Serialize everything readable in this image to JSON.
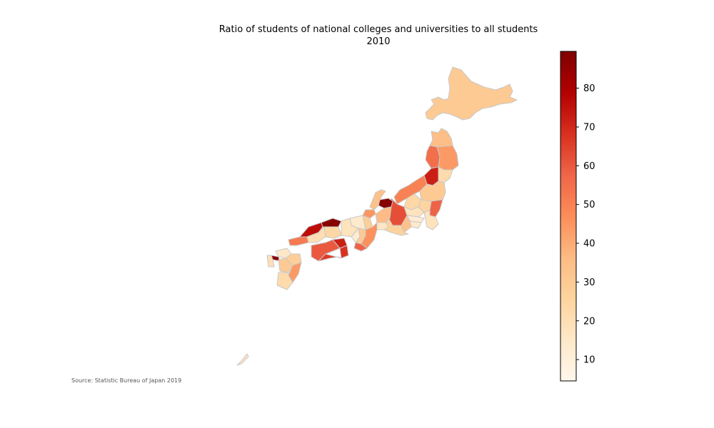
{
  "figure": {
    "title_line1": "Ratio of students of national colleges and universities to all students",
    "title_line2": "2010",
    "source": "Source: Statistic Bureau of Japan 2019"
  },
  "colorbar": {
    "colormap": "OrRd",
    "range": [
      4.5,
      89.5
    ],
    "ticks": [
      10,
      20,
      30,
      40,
      50,
      60,
      70,
      80
    ],
    "colors": [
      "#fff7ec",
      "#fee8c8",
      "#fdd49e",
      "#fdbb84",
      "#fc8d59",
      "#ef6548",
      "#d7301f",
      "#b30000",
      "#7f0000"
    ]
  },
  "regions": [
    {
      "name": "Hokkaido",
      "value": 30
    },
    {
      "name": "Aomori",
      "value": 35
    },
    {
      "name": "Iwate",
      "value": 44
    },
    {
      "name": "Akita",
      "value": 55
    },
    {
      "name": "Miyagi",
      "value": 22
    },
    {
      "name": "Yamagata",
      "value": 72
    },
    {
      "name": "Fukushima",
      "value": 30
    },
    {
      "name": "Niigata",
      "value": 50
    },
    {
      "name": "Ibaraki",
      "value": 58
    },
    {
      "name": "Tochigi",
      "value": 25
    },
    {
      "name": "Gunma",
      "value": 24
    },
    {
      "name": "Saitama",
      "value": 18
    },
    {
      "name": "Chiba",
      "value": 18
    },
    {
      "name": "Tokyo",
      "value": 12
    },
    {
      "name": "Kanagawa",
      "value": 14
    },
    {
      "name": "Yamanashi",
      "value": 34
    },
    {
      "name": "Nagano",
      "value": 62
    },
    {
      "name": "Toyama",
      "value": 88
    },
    {
      "name": "Ishikawa",
      "value": 34
    },
    {
      "name": "Fukui",
      "value": 45
    },
    {
      "name": "Gifu",
      "value": 36
    },
    {
      "name": "Shizuoka",
      "value": 26
    },
    {
      "name": "Aichi",
      "value": 16
    },
    {
      "name": "Mie",
      "value": 46
    },
    {
      "name": "Shiga",
      "value": 28
    },
    {
      "name": "Kyoto",
      "value": 14
    },
    {
      "name": "Osaka",
      "value": 12
    },
    {
      "name": "Hyogo",
      "value": 18
    },
    {
      "name": "Nara",
      "value": 30
    },
    {
      "name": "Wakayama",
      "value": 58
    },
    {
      "name": "Tottori",
      "value": 88
    },
    {
      "name": "Shimane",
      "value": 76
    },
    {
      "name": "Okayama",
      "value": 24
    },
    {
      "name": "Hiroshima",
      "value": 20
    },
    {
      "name": "Yamaguchi",
      "value": 52
    },
    {
      "name": "Tokushima",
      "value": 68
    },
    {
      "name": "Kagawa",
      "value": 72
    },
    {
      "name": "Ehime",
      "value": 60
    },
    {
      "name": "Kochi",
      "value": 66
    },
    {
      "name": "Fukuoka",
      "value": 15
    },
    {
      "name": "Saga",
      "value": 88
    },
    {
      "name": "Nagasaki",
      "value": 20
    },
    {
      "name": "Kumamoto",
      "value": 30
    },
    {
      "name": "Oita",
      "value": 28
    },
    {
      "name": "Miyazaki",
      "value": 44
    },
    {
      "name": "Kagoshima",
      "value": 22
    },
    {
      "name": "Okinawa",
      "value": 18
    }
  ]
}
